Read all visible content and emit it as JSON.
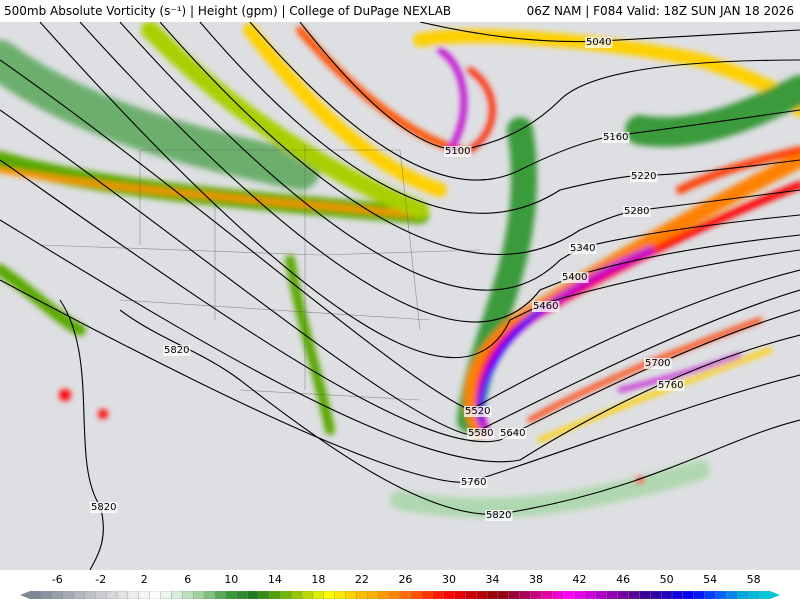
{
  "header": {
    "title_left": "500mb Absolute Vorticity (s⁻¹) | Height (gpm) | College of DuPage NEXLAB",
    "title_right": "06Z NAM | F084 Valid: 18Z SUN JAN 18 2026"
  },
  "map": {
    "contour_color": "#000000",
    "contour_labels": [
      {
        "text": "5040"
      },
      {
        "text": "5100"
      },
      {
        "text": "5160"
      },
      {
        "text": "5220"
      },
      {
        "text": "5280"
      },
      {
        "text": "5340"
      },
      {
        "text": "5400"
      },
      {
        "text": "5460"
      },
      {
        "text": "5520"
      },
      {
        "text": "5580"
      },
      {
        "text": "5640"
      },
      {
        "text": "5700"
      },
      {
        "text": "5760"
      },
      {
        "text": "5760"
      },
      {
        "text": "5820"
      },
      {
        "text": "5820"
      },
      {
        "text": "5820"
      }
    ]
  },
  "legend": {
    "ticks": [
      "-6",
      "-2",
      "2",
      "6",
      "10",
      "14",
      "18",
      "22",
      "26",
      "30",
      "34",
      "38",
      "42",
      "46",
      "50",
      "54",
      "58"
    ],
    "range": [
      -8,
      60
    ],
    "colors": [
      "#7c8896",
      "#9aa2ac",
      "#b8bcc2",
      "#d2d4d6",
      "#ececec",
      "#ffffff",
      "#cfe8cf",
      "#8cc88c",
      "#3a9a3a",
      "#1e7a1e",
      "#5aa800",
      "#a8d000",
      "#ffff00",
      "#ffd000",
      "#ffa800",
      "#ff7a00",
      "#ff3a00",
      "#ff0000",
      "#c80000",
      "#900000",
      "#a00050",
      "#e000a0",
      "#ff00ff",
      "#c000d0",
      "#8000a8",
      "#400090",
      "#2000c0",
      "#0000ff",
      "#0050ff",
      "#00a0e0",
      "#00c8d8"
    ]
  }
}
